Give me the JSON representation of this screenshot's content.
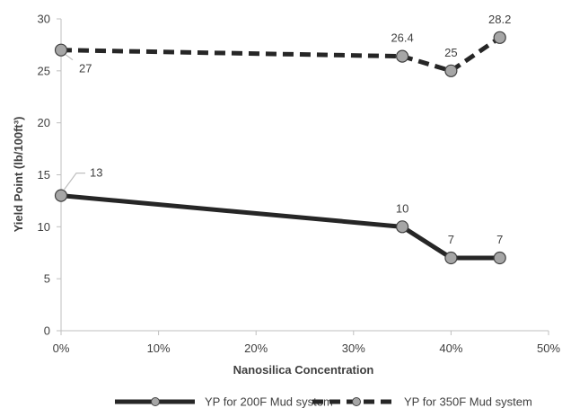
{
  "chart_data": {
    "type": "line",
    "title": "",
    "xlabel": "Nanosilica Concentration",
    "ylabel": "Yield Point (lb/100ft³)",
    "xlim": [
      0,
      50
    ],
    "ylim": [
      0,
      30
    ],
    "x_ticks": [
      "0%",
      "10%",
      "20%",
      "30%",
      "40%",
      "50%"
    ],
    "y_ticks": [
      "0",
      "5",
      "10",
      "15",
      "20",
      "25",
      "30"
    ],
    "grid": false,
    "legend_position": "bottom",
    "series": [
      {
        "name": "YP for 200F Mud system",
        "style": "solid",
        "color": "#262626",
        "marker_color": "#a6a6a6",
        "x": [
          0,
          35,
          40,
          45
        ],
        "values": [
          13,
          10,
          7,
          7
        ],
        "labels": [
          "13",
          "10",
          "7",
          "7"
        ]
      },
      {
        "name": "YP for 350F Mud system",
        "style": "dashed",
        "color": "#262626",
        "marker_color": "#a6a6a6",
        "x": [
          0,
          35,
          40,
          45
        ],
        "values": [
          27,
          26.4,
          25,
          28.2
        ],
        "labels": [
          "27",
          "26.4",
          "25",
          "28.2"
        ]
      }
    ]
  }
}
